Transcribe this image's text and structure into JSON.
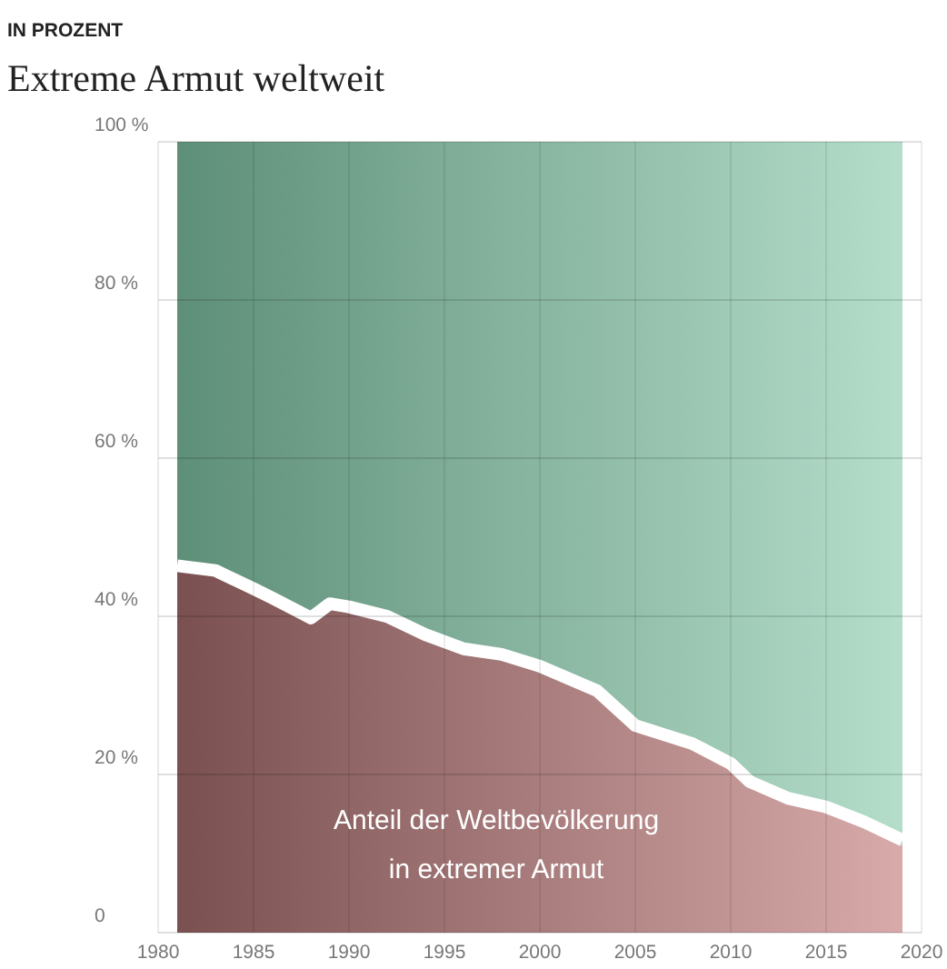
{
  "chart_data": {
    "type": "area",
    "subtitle": "IN PROZENT",
    "title": "Extreme Armut weltweit",
    "stacked": true,
    "x": [
      1981,
      1983,
      1985,
      1986,
      1988,
      1989,
      1990,
      1992,
      1994,
      1996,
      1998,
      2000,
      2003,
      2005,
      2008,
      2010,
      2011,
      2013,
      2015,
      2017,
      2019
    ],
    "series": [
      {
        "name": "Anteil der Weltbevölkerung in extremer Armut",
        "color": "#7a5050",
        "values": [
          45.7,
          45.1,
          42.8,
          41.6,
          39.1,
          40.9,
          40.5,
          39.3,
          37,
          35.2,
          34.5,
          33,
          29.9,
          25.5,
          23.2,
          20.7,
          18.4,
          16.3,
          15.2,
          13.3,
          11
        ]
      },
      {
        "color": "#5e8f78",
        "values": [
          54.3,
          54.9,
          57.2,
          58.4,
          60.9,
          59.1,
          59.5,
          60.7,
          63,
          64.8,
          65.5,
          67,
          70.1,
          74.5,
          76.8,
          79.3,
          81.6,
          83.7,
          84.8,
          86.7,
          89
        ]
      }
    ],
    "xlim": [
      1980,
      2020
    ],
    "xticks": [
      1980,
      1985,
      1990,
      1995,
      2000,
      2005,
      2010,
      2015,
      2020
    ],
    "ylim": [
      0,
      100
    ],
    "yticks": [
      {
        "value": 0,
        "label": "0"
      },
      {
        "value": 20,
        "label": "20 %"
      },
      {
        "value": 40,
        "label": "40 %"
      },
      {
        "value": 60,
        "label": "60 %"
      },
      {
        "value": 80,
        "label": "80 %"
      },
      {
        "value": 100,
        "label": "100 %"
      }
    ],
    "grid": true
  }
}
